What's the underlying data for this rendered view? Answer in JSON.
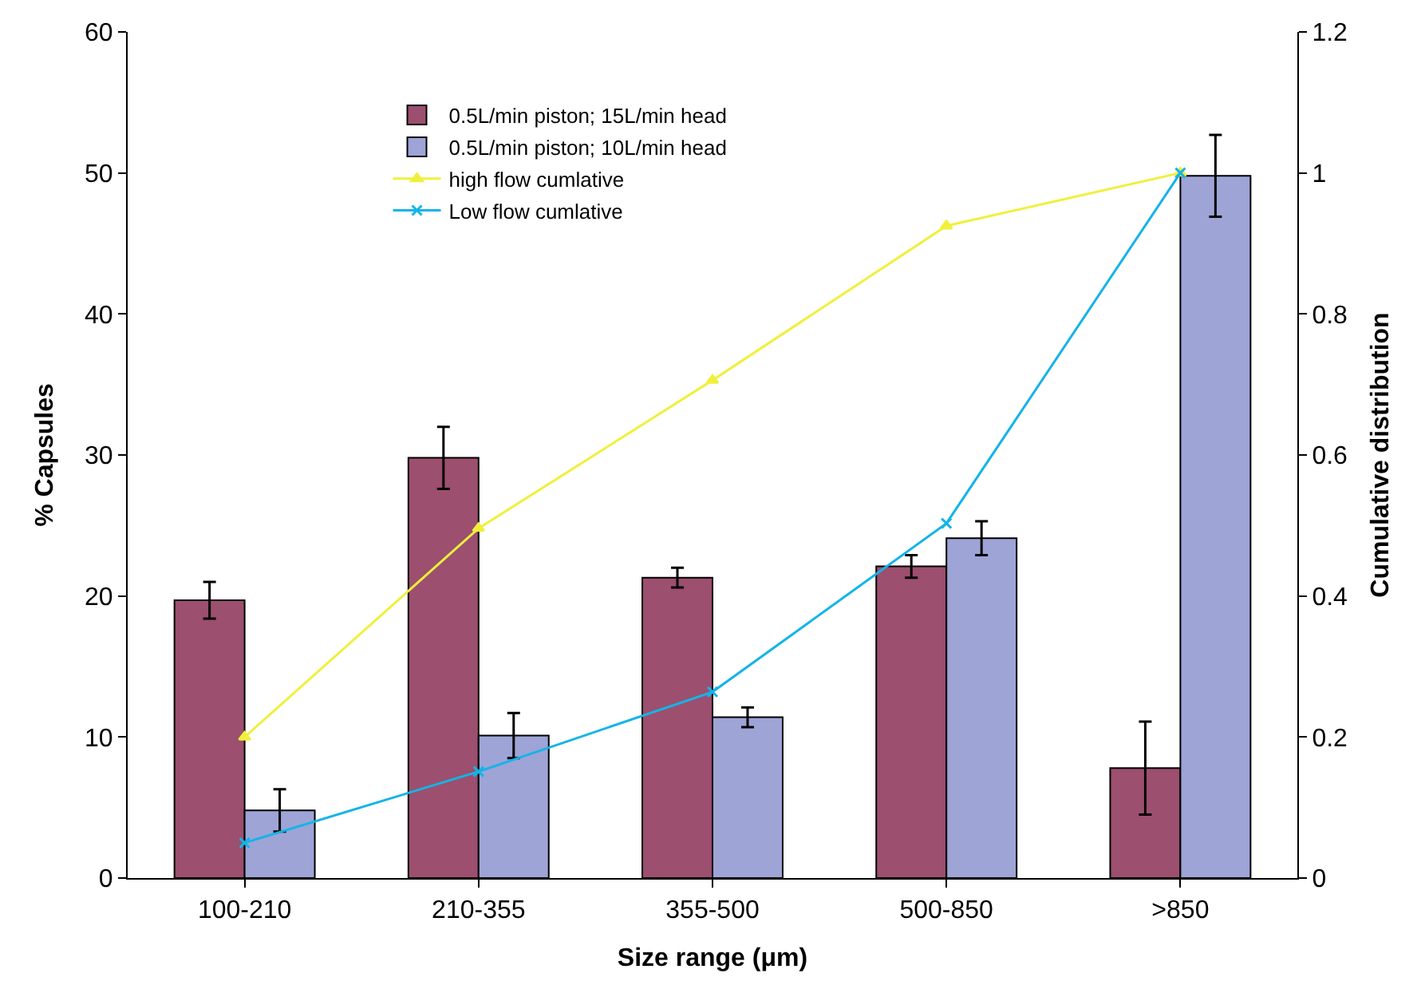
{
  "chart_data": {
    "type": "bar",
    "xlabel": "Size range (μm)",
    "ylabel": "% Capsules",
    "y2label": "Cumulative distribution",
    "categories": [
      "100-210",
      "210-355",
      "355-500",
      "500-850",
      ">850"
    ],
    "series": [
      {
        "name": "0.5L/min piston; 15L/min head",
        "color": "#9c4f6e",
        "values": [
          19.7,
          29.8,
          21.3,
          22.1,
          7.8
        ],
        "errors": [
          1.3,
          2.2,
          0.7,
          0.8,
          3.3
        ]
      },
      {
        "name": "0.5L/min piston; 10L/min head",
        "color": "#9ea4d6",
        "values": [
          4.8,
          10.1,
          11.4,
          24.1,
          49.8
        ],
        "errors": [
          1.5,
          1.6,
          0.7,
          1.2,
          2.9
        ]
      },
      {
        "name": "high flow cumlative",
        "type": "line",
        "axis": "y2",
        "marker": "triangle",
        "color": "#f0f03c",
        "values": [
          0.2,
          0.496,
          0.706,
          0.925,
          1.0
        ]
      },
      {
        "name": "Low flow cumlative",
        "type": "line",
        "axis": "y2",
        "marker": "cross",
        "color": "#14b4e8",
        "values": [
          0.05,
          0.151,
          0.264,
          0.503,
          1.0
        ]
      }
    ],
    "ylim": [
      0,
      60
    ],
    "yticks": [
      0,
      10,
      20,
      30,
      40,
      50,
      60
    ],
    "y2lim": [
      0,
      1.2
    ],
    "y2ticks": [
      0,
      0.2,
      0.4,
      0.6,
      0.8,
      1,
      1.2
    ],
    "legend": "top"
  }
}
